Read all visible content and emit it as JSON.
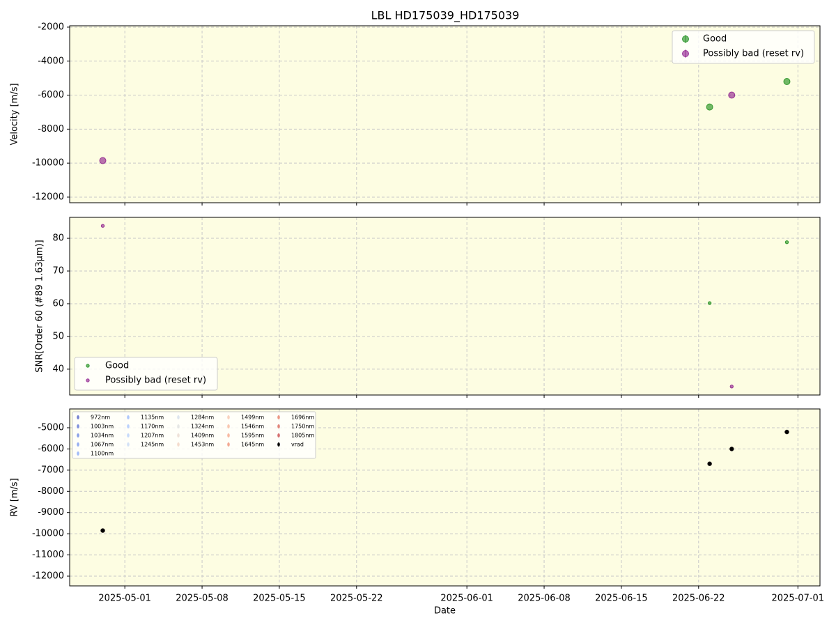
{
  "chart_data": [
    {
      "type": "scatter",
      "title": "LBL HD175039_HD175039",
      "ylabel": "Velocity [m/s]",
      "x": [
        "2025-04-29",
        "2025-06-23",
        "2025-06-25",
        "2025-06-30"
      ],
      "xlim": [
        "2025-04-26",
        "2025-07-03"
      ],
      "xticks": [
        "2025-05-01",
        "2025-05-08",
        "2025-05-15",
        "2025-05-22",
        "2025-06-01",
        "2025-06-08",
        "2025-06-15",
        "2025-06-22",
        "2025-07-01"
      ],
      "ylim": [
        -12330,
        -1920
      ],
      "yticks": [
        -12000,
        -10000,
        -8000,
        -6000,
        -4000,
        -2000
      ],
      "grid": true,
      "legend": "upper right",
      "series": [
        {
          "name": "Good",
          "color": "#008000",
          "values": [
            null,
            -6700,
            null,
            -5200
          ]
        },
        {
          "name": "Possibly bad (reset rv)",
          "color": "#800080",
          "values": [
            -9850,
            null,
            -6000,
            null
          ]
        }
      ]
    },
    {
      "type": "scatter",
      "ylabel": "SNR[Order 60 (#89 1.63μm)]",
      "x": [
        "2025-04-29",
        "2025-06-23",
        "2025-06-25",
        "2025-06-30"
      ],
      "xlim": [
        "2025-04-26",
        "2025-07-03"
      ],
      "xticks": [
        "2025-05-01",
        "2025-05-08",
        "2025-05-15",
        "2025-05-22",
        "2025-06-01",
        "2025-06-08",
        "2025-06-15",
        "2025-06-22",
        "2025-07-01"
      ],
      "ylim": [
        32.1,
        86.4
      ],
      "yticks": [
        40,
        50,
        60,
        70,
        80
      ],
      "grid": true,
      "legend": "lower left",
      "series": [
        {
          "name": "Good",
          "color": "#008000",
          "values": [
            null,
            60.2,
            null,
            78.8
          ]
        },
        {
          "name": "Possibly bad (reset rv)",
          "color": "#800080",
          "values": [
            83.8,
            null,
            34.7,
            null
          ]
        }
      ]
    },
    {
      "type": "scatter",
      "ylabel": "RV [m/s]",
      "xlabel": "Date",
      "x": [
        "2025-04-29",
        "2025-06-23",
        "2025-06-25",
        "2025-06-30"
      ],
      "xlim": [
        "2025-04-26",
        "2025-07-03"
      ],
      "xticks": [
        "2025-05-01",
        "2025-05-08",
        "2025-05-15",
        "2025-05-22",
        "2025-06-01",
        "2025-06-08",
        "2025-06-15",
        "2025-06-22",
        "2025-07-01"
      ],
      "ylim": [
        -12460,
        -4113
      ],
      "yticks": [
        -12000,
        -11000,
        -10000,
        -9000,
        -8000,
        -7000,
        -6000,
        -5000
      ],
      "grid": true,
      "legend": "upper left",
      "series": [
        {
          "name": "972nm",
          "color": "#3b4cc0",
          "values": [
            -9850,
            -6700,
            -6000,
            -5200
          ]
        },
        {
          "name": "1003nm",
          "color": "#4961d2",
          "values": [
            -9850,
            -6700,
            -6000,
            -5200
          ]
        },
        {
          "name": "1034nm",
          "color": "#5977e3",
          "values": [
            -9850,
            -6700,
            -6000,
            -5200
          ]
        },
        {
          "name": "1067nm",
          "color": "#6a8bef",
          "values": [
            -9850,
            -6700,
            -6000,
            -5200
          ]
        },
        {
          "name": "1100nm",
          "color": "#7b9ff9",
          "values": [
            -9850,
            -6700,
            -6000,
            -5200
          ]
        },
        {
          "name": "1135nm",
          "color": "#8db0fe",
          "values": [
            -9850,
            -6700,
            -6000,
            -5200
          ]
        },
        {
          "name": "1170nm",
          "color": "#9ebeff",
          "values": [
            -9850,
            -6700,
            -6000,
            -5200
          ]
        },
        {
          "name": "1207nm",
          "color": "#afcafc",
          "values": [
            -9850,
            -6700,
            -6000,
            -5200
          ]
        },
        {
          "name": "1245nm",
          "color": "#c0d4f5",
          "values": [
            -9850,
            -6700,
            -6000,
            -5200
          ]
        },
        {
          "name": "1284nm",
          "color": "#cfdaea",
          "values": [
            -9850,
            -6700,
            -6000,
            -5200
          ]
        },
        {
          "name": "1324nm",
          "color": "#dcdddd",
          "values": [
            -9850,
            -6700,
            -6000,
            -5200
          ]
        },
        {
          "name": "1409nm",
          "color": "#e8d6cc",
          "values": [
            -9850,
            -6700,
            -6000,
            -5200
          ]
        },
        {
          "name": "1453nm",
          "color": "#f1cdba",
          "values": [
            -9850,
            -6700,
            -6000,
            -5200
          ]
        },
        {
          "name": "1499nm",
          "color": "#f6bfa6",
          "values": [
            -9850,
            -6700,
            -6000,
            -5200
          ]
        },
        {
          "name": "1546nm",
          "color": "#f7af91",
          "values": [
            -9850,
            -6700,
            -6000,
            -5200
          ]
        },
        {
          "name": "1595nm",
          "color": "#f59c7d",
          "values": [
            -9850,
            -6700,
            -6000,
            -5200
          ]
        },
        {
          "name": "1645nm",
          "color": "#ee8468",
          "values": [
            -9850,
            -6700,
            -6000,
            -5200
          ]
        },
        {
          "name": "1696nm",
          "color": "#e46e56",
          "values": [
            -9850,
            -6700,
            -6000,
            -5200
          ]
        },
        {
          "name": "1750nm",
          "color": "#d65244",
          "values": [
            -9850,
            -6700,
            -6000,
            -5200
          ]
        },
        {
          "name": "1805nm",
          "color": "#c53334",
          "values": [
            -9850,
            -6700,
            -6000,
            -5200
          ]
        },
        {
          "name": "vrad",
          "color": "#000000",
          "values": [
            -9850,
            -6700,
            -6000,
            -5200
          ]
        }
      ]
    }
  ]
}
